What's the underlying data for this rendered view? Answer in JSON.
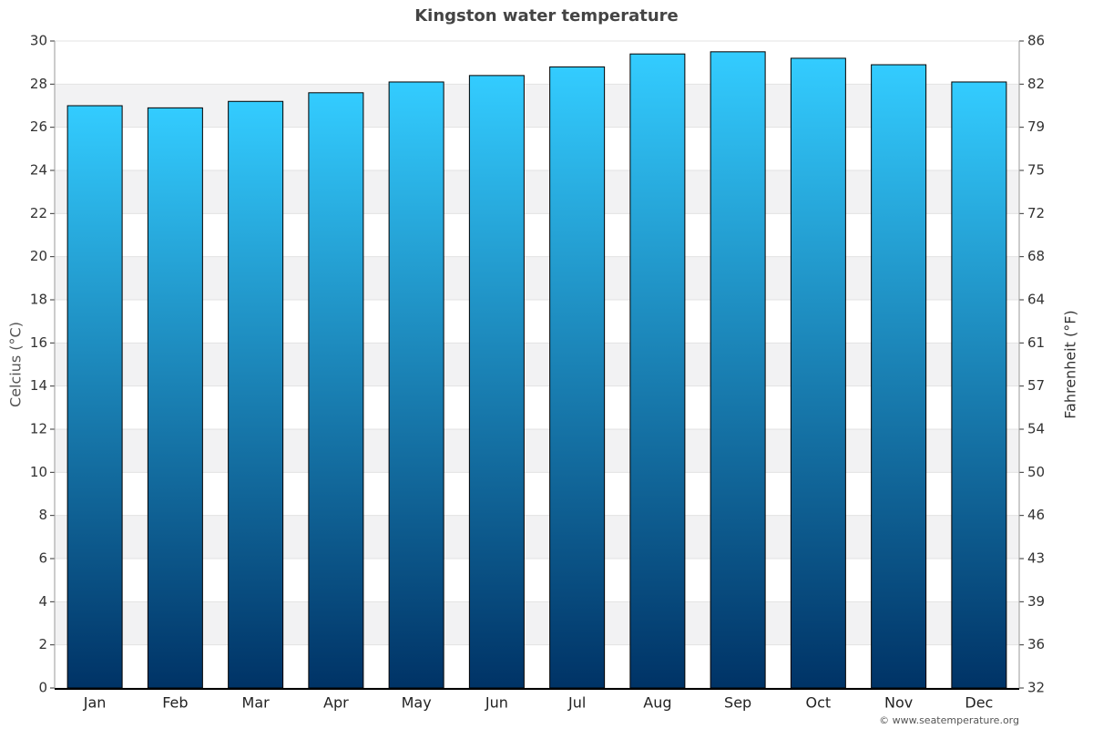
{
  "chart_data": {
    "type": "bar",
    "title": "Kingston water temperature",
    "categories": [
      "Jan",
      "Feb",
      "Mar",
      "Apr",
      "May",
      "Jun",
      "Jul",
      "Aug",
      "Sep",
      "Oct",
      "Nov",
      "Dec"
    ],
    "values": [
      27.0,
      26.9,
      27.2,
      27.6,
      28.1,
      28.4,
      28.8,
      29.4,
      29.5,
      29.2,
      28.9,
      28.1
    ],
    "gradient": [
      "#33ccff",
      "#003366"
    ],
    "ylabel": "Celcius (°C)",
    "y2label": "Fahrenheit (°F)",
    "ylim": [
      0,
      30
    ],
    "yticks": [
      0,
      2,
      4,
      6,
      8,
      10,
      12,
      14,
      16,
      18,
      20,
      22,
      24,
      26,
      28,
      30
    ],
    "y2lim": [
      32,
      86
    ],
    "y2ticks": [
      32,
      {
        "value": 35.6,
        "label": "36"
      },
      {
        "value": 39.2,
        "label": "39"
      },
      {
        "value": 42.8,
        "label": "43"
      },
      {
        "value": 46.4,
        "label": "46"
      },
      50,
      {
        "value": 53.6,
        "label": "54"
      },
      {
        "value": 57.2,
        "label": "57"
      },
      {
        "value": 60.8,
        "label": "61"
      },
      {
        "value": 64.4,
        "label": "64"
      },
      68,
      {
        "value": 71.6,
        "label": "72"
      },
      {
        "value": 75.2,
        "label": "75"
      },
      {
        "value": 78.8,
        "label": "79"
      },
      {
        "value": 82.4,
        "label": "82"
      },
      86
    ],
    "grid": true,
    "credit": "© www.seatemperature.org"
  }
}
